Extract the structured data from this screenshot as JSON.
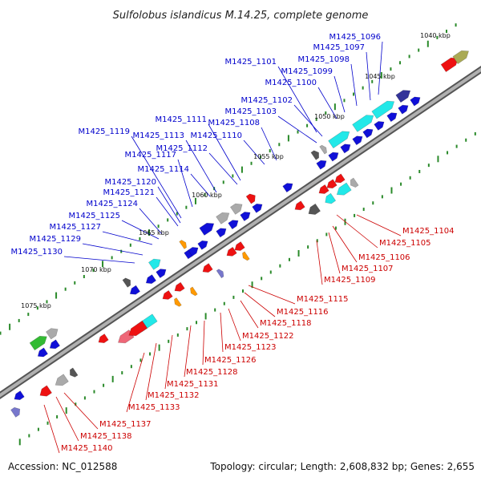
{
  "title": "Sulfolobus islandicus M.14.25, complete genome",
  "footer": {
    "accession": "Accession: NC_012588",
    "summary": "Topology: circular; Length: 2,608,832 bp; Genes: 2,655"
  },
  "colors": {
    "plus_label": "#0000cc",
    "minus_label": "#cc0000",
    "backbone": "#888888",
    "tick": "#2a8a2a"
  },
  "kbp_marks": [
    "1040 kbp",
    "1045 kbp",
    "1050 kbp",
    "1055 kbp",
    "1060 kbp",
    "1065 kbp",
    "1070 kbp",
    "1075 kbp"
  ],
  "upper_labels": [
    "M1425_1096",
    "M1425_1097",
    "M1425_1098",
    "M1425_1099",
    "M1425_1100",
    "M1425_1101",
    "M1425_1102",
    "M1425_1103",
    "M1425_1108",
    "M1425_1110",
    "M1425_1111",
    "M1425_1112",
    "M1425_1113",
    "M1425_1114",
    "M1425_1117",
    "M1425_1119",
    "M1425_1120",
    "M1425_1121",
    "M1425_1124",
    "M1425_1125",
    "M1425_1127",
    "M1425_1129",
    "M1425_1130"
  ],
  "lower_labels": [
    "M1425_1104",
    "M1425_1105",
    "M1425_1106",
    "M1425_1107",
    "M1425_1109",
    "M1425_1115",
    "M1425_1116",
    "M1425_1118",
    "M1425_1122",
    "M1425_1123",
    "M1425_1126",
    "M1425_1128",
    "M1425_1131",
    "M1425_1132",
    "M1425_1133",
    "M1425_1137",
    "M1425_1138",
    "M1425_1140"
  ]
}
